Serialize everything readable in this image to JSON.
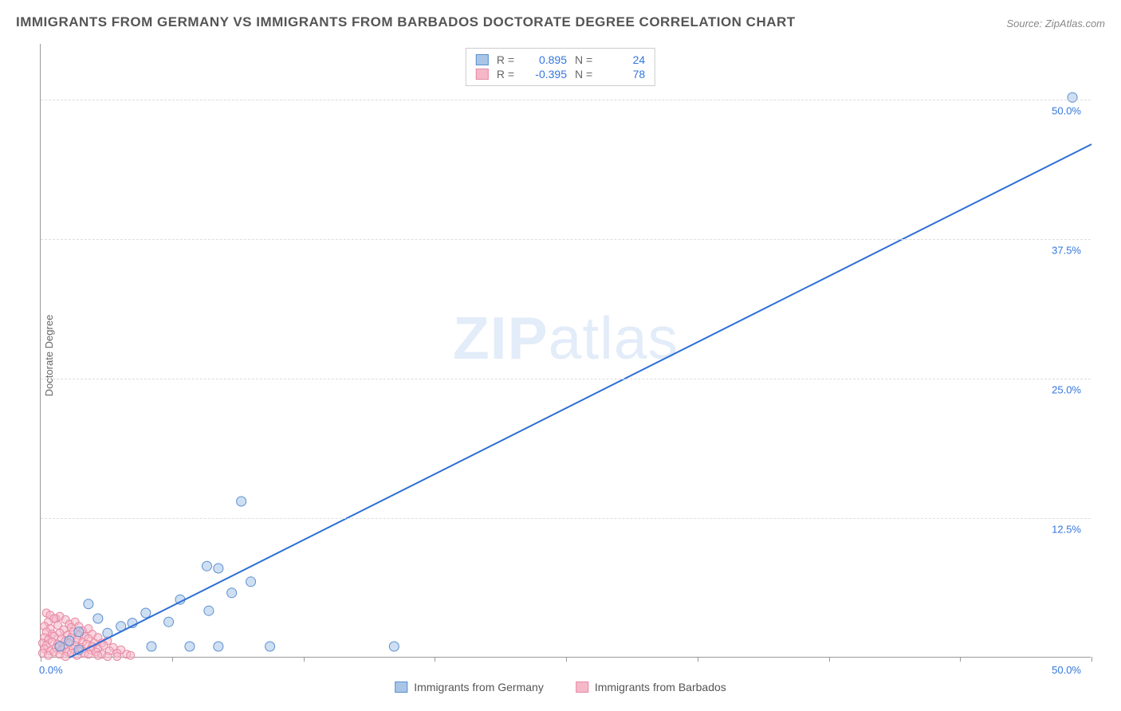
{
  "title": "IMMIGRANTS FROM GERMANY VS IMMIGRANTS FROM BARBADOS DOCTORATE DEGREE CORRELATION CHART",
  "source": "Source: ZipAtlas.com",
  "y_axis_label": "Doctorate Degree",
  "watermark_zip": "ZIP",
  "watermark_atlas": "atlas",
  "chart": {
    "type": "scatter",
    "xlim": [
      0,
      55
    ],
    "ylim": [
      0,
      55
    ],
    "x_ticks": [
      0,
      6.875,
      13.75,
      20.625,
      27.5,
      34.375,
      41.25,
      48.125,
      55
    ],
    "y_gridlines": [
      12.5,
      25,
      37.5,
      50
    ],
    "y_tick_labels": [
      "12.5%",
      "25.0%",
      "37.5%",
      "50.0%"
    ],
    "x_min_label": "0.0%",
    "x_max_label": "50.0%",
    "background_color": "#ffffff",
    "grid_color": "#dddddd",
    "axis_color": "#999999",
    "tick_label_color": "#3377dd",
    "series": [
      {
        "name": "Immigrants from Germany",
        "fill_color": "#a8c5e8",
        "stroke_color": "#5a8fd0",
        "marker_radius": 6,
        "fill_opacity": 0.55,
        "R": "0.895",
        "N": "24",
        "trendline": {
          "x1": 1.5,
          "y1": 0,
          "x2": 55,
          "y2": 46,
          "color": "#2e6fd6",
          "width": 2
        },
        "points": [
          {
            "x": 54.0,
            "y": 50.2
          },
          {
            "x": 10.5,
            "y": 14.0
          },
          {
            "x": 8.7,
            "y": 8.2
          },
          {
            "x": 9.3,
            "y": 8.0
          },
          {
            "x": 11.0,
            "y": 6.8
          },
          {
            "x": 10.0,
            "y": 5.8
          },
          {
            "x": 7.3,
            "y": 5.2
          },
          {
            "x": 8.8,
            "y": 4.2
          },
          {
            "x": 5.5,
            "y": 4.0
          },
          {
            "x": 6.7,
            "y": 3.2
          },
          {
            "x": 4.8,
            "y": 3.1
          },
          {
            "x": 3.0,
            "y": 3.5
          },
          {
            "x": 4.2,
            "y": 2.8
          },
          {
            "x": 2.5,
            "y": 4.8
          },
          {
            "x": 3.5,
            "y": 2.2
          },
          {
            "x": 2.0,
            "y": 2.3
          },
          {
            "x": 1.5,
            "y": 1.5
          },
          {
            "x": 5.8,
            "y": 1.0
          },
          {
            "x": 7.8,
            "y": 1.0
          },
          {
            "x": 9.3,
            "y": 1.0
          },
          {
            "x": 12.0,
            "y": 1.0
          },
          {
            "x": 18.5,
            "y": 1.0
          },
          {
            "x": 1.0,
            "y": 1.0
          },
          {
            "x": 2.0,
            "y": 0.7
          }
        ]
      },
      {
        "name": "Immigrants from Barbados",
        "fill_color": "#f5b8c8",
        "stroke_color": "#e78aa5",
        "marker_radius": 5,
        "fill_opacity": 0.55,
        "R": "-0.395",
        "N": "78",
        "points": [
          {
            "x": 0.3,
            "y": 4.0
          },
          {
            "x": 0.5,
            "y": 3.8
          },
          {
            "x": 0.8,
            "y": 3.5
          },
          {
            "x": 1.0,
            "y": 3.7
          },
          {
            "x": 1.3,
            "y": 3.4
          },
          {
            "x": 0.4,
            "y": 3.2
          },
          {
            "x": 0.7,
            "y": 3.5
          },
          {
            "x": 1.5,
            "y": 3.0
          },
          {
            "x": 1.8,
            "y": 3.2
          },
          {
            "x": 2.0,
            "y": 2.8
          },
          {
            "x": 0.2,
            "y": 2.8
          },
          {
            "x": 0.5,
            "y": 2.6
          },
          {
            "x": 0.9,
            "y": 2.9
          },
          {
            "x": 1.2,
            "y": 2.5
          },
          {
            "x": 1.6,
            "y": 2.7
          },
          {
            "x": 2.2,
            "y": 2.4
          },
          {
            "x": 2.5,
            "y": 2.6
          },
          {
            "x": 0.3,
            "y": 2.3
          },
          {
            "x": 0.6,
            "y": 2.1
          },
          {
            "x": 1.0,
            "y": 2.2
          },
          {
            "x": 1.4,
            "y": 2.0
          },
          {
            "x": 1.7,
            "y": 2.3
          },
          {
            "x": 2.0,
            "y": 2.0
          },
          {
            "x": 2.3,
            "y": 1.9
          },
          {
            "x": 2.7,
            "y": 2.1
          },
          {
            "x": 3.0,
            "y": 1.8
          },
          {
            "x": 0.2,
            "y": 1.8
          },
          {
            "x": 0.4,
            "y": 1.6
          },
          {
            "x": 0.7,
            "y": 1.9
          },
          {
            "x": 1.1,
            "y": 1.7
          },
          {
            "x": 1.3,
            "y": 1.5
          },
          {
            "x": 1.6,
            "y": 1.8
          },
          {
            "x": 1.9,
            "y": 1.6
          },
          {
            "x": 2.2,
            "y": 1.4
          },
          {
            "x": 2.5,
            "y": 1.7
          },
          {
            "x": 2.8,
            "y": 1.3
          },
          {
            "x": 3.2,
            "y": 1.3
          },
          {
            "x": 3.5,
            "y": 1.5
          },
          {
            "x": 0.1,
            "y": 1.3
          },
          {
            "x": 0.3,
            "y": 1.1
          },
          {
            "x": 0.6,
            "y": 1.4
          },
          {
            "x": 0.9,
            "y": 1.2
          },
          {
            "x": 1.2,
            "y": 1.0
          },
          {
            "x": 1.5,
            "y": 1.3
          },
          {
            "x": 1.8,
            "y": 1.1
          },
          {
            "x": 2.1,
            "y": 0.9
          },
          {
            "x": 2.4,
            "y": 1.2
          },
          {
            "x": 2.7,
            "y": 1.0
          },
          {
            "x": 3.0,
            "y": 0.8
          },
          {
            "x": 3.3,
            "y": 1.1
          },
          {
            "x": 3.8,
            "y": 0.9
          },
          {
            "x": 4.2,
            "y": 0.7
          },
          {
            "x": 0.2,
            "y": 0.8
          },
          {
            "x": 0.5,
            "y": 0.6
          },
          {
            "x": 0.8,
            "y": 0.9
          },
          {
            "x": 1.1,
            "y": 0.7
          },
          {
            "x": 1.4,
            "y": 0.5
          },
          {
            "x": 1.7,
            "y": 0.8
          },
          {
            "x": 2.0,
            "y": 0.6
          },
          {
            "x": 2.3,
            "y": 0.4
          },
          {
            "x": 2.6,
            "y": 0.7
          },
          {
            "x": 2.9,
            "y": 0.5
          },
          {
            "x": 3.2,
            "y": 0.3
          },
          {
            "x": 3.6,
            "y": 0.6
          },
          {
            "x": 4.0,
            "y": 0.4
          },
          {
            "x": 4.5,
            "y": 0.3
          },
          {
            "x": 0.1,
            "y": 0.4
          },
          {
            "x": 0.4,
            "y": 0.2
          },
          {
            "x": 0.7,
            "y": 0.5
          },
          {
            "x": 1.0,
            "y": 0.3
          },
          {
            "x": 1.3,
            "y": 0.1
          },
          {
            "x": 1.6,
            "y": 0.4
          },
          {
            "x": 1.9,
            "y": 0.2
          },
          {
            "x": 2.5,
            "y": 0.3
          },
          {
            "x": 3.0,
            "y": 0.2
          },
          {
            "x": 3.5,
            "y": 0.1
          },
          {
            "x": 4.0,
            "y": 0.1
          },
          {
            "x": 4.7,
            "y": 0.2
          }
        ]
      }
    ]
  },
  "top_legend_labels": {
    "R": "R =",
    "N": "N ="
  },
  "bottom_legend": [
    {
      "label": "Immigrants from Germany",
      "fill": "#a8c5e8",
      "stroke": "#5a8fd0"
    },
    {
      "label": "Immigrants from Barbados",
      "fill": "#f5b8c8",
      "stroke": "#e78aa5"
    }
  ]
}
